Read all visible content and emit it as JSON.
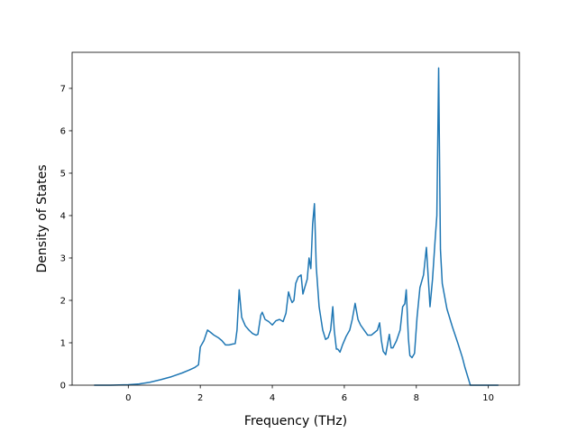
{
  "chart_data": {
    "type": "line",
    "title": "",
    "xlabel": "Frequency (THz)",
    "ylabel": "Density of States",
    "xlim": [
      -1.56,
      10.86
    ],
    "ylim": [
      0,
      7.85
    ],
    "x_ticks": [
      0,
      2,
      4,
      6,
      8,
      10
    ],
    "y_ticks": [
      0,
      1,
      2,
      3,
      4,
      5,
      6,
      7
    ],
    "grid": false,
    "legend": "none",
    "color": "#1f77b4",
    "series": [
      {
        "x": [
          -0.95,
          -0.5,
          0.0,
          0.3,
          0.6,
          0.9,
          1.2,
          1.5,
          1.7,
          1.85,
          1.95,
          2.0,
          2.1,
          2.2,
          2.28,
          2.38,
          2.5,
          2.6,
          2.7,
          2.8,
          2.9,
          2.97,
          3.02,
          3.08,
          3.15,
          3.25,
          3.35,
          3.45,
          3.55,
          3.6,
          3.68,
          3.72,
          3.8,
          3.9,
          4.0,
          4.1,
          4.2,
          4.3,
          4.38,
          4.45,
          4.5,
          4.55,
          4.6,
          4.65,
          4.72,
          4.8,
          4.85,
          4.9,
          4.97,
          5.02,
          5.07,
          5.12,
          5.17,
          5.22,
          5.3,
          5.4,
          5.48,
          5.55,
          5.62,
          5.68,
          5.72,
          5.78,
          5.82,
          5.88,
          5.95,
          6.05,
          6.15,
          6.22,
          6.3,
          6.38,
          6.45,
          6.55,
          6.65,
          6.75,
          6.85,
          6.92,
          6.98,
          7.03,
          7.08,
          7.15,
          7.25,
          7.3,
          7.35,
          7.45,
          7.55,
          7.62,
          7.68,
          7.72,
          7.78,
          7.82,
          7.88,
          7.95,
          8.02,
          8.1,
          8.2,
          8.28,
          8.38,
          8.45,
          8.52,
          8.57,
          8.62,
          8.67,
          8.72,
          8.85,
          9.0,
          9.15,
          9.28,
          9.35,
          9.5,
          9.8,
          10.05,
          10.28
        ],
        "y": [
          0.0,
          0.0,
          0.01,
          0.03,
          0.07,
          0.13,
          0.2,
          0.29,
          0.36,
          0.42,
          0.48,
          0.9,
          1.05,
          1.3,
          1.25,
          1.18,
          1.12,
          1.05,
          0.95,
          0.95,
          0.97,
          0.98,
          1.3,
          2.25,
          1.6,
          1.4,
          1.3,
          1.22,
          1.18,
          1.2,
          1.65,
          1.72,
          1.55,
          1.5,
          1.42,
          1.52,
          1.55,
          1.5,
          1.7,
          2.2,
          2.05,
          1.95,
          2.0,
          2.4,
          2.55,
          2.6,
          2.15,
          2.3,
          2.5,
          3.0,
          2.75,
          3.8,
          4.28,
          2.8,
          1.85,
          1.3,
          1.08,
          1.12,
          1.3,
          1.85,
          1.3,
          0.85,
          0.85,
          0.78,
          0.95,
          1.15,
          1.3,
          1.55,
          1.93,
          1.55,
          1.42,
          1.3,
          1.18,
          1.18,
          1.25,
          1.3,
          1.47,
          1.05,
          0.8,
          0.72,
          1.2,
          0.88,
          0.88,
          1.05,
          1.3,
          1.85,
          1.92,
          2.25,
          1.1,
          0.7,
          0.65,
          0.75,
          1.6,
          2.3,
          2.6,
          3.25,
          1.85,
          2.5,
          3.4,
          4.0,
          7.48,
          3.2,
          2.4,
          1.8,
          1.38,
          1.0,
          0.65,
          0.42,
          0.0,
          0.0,
          0.0,
          0.0
        ]
      }
    ]
  }
}
